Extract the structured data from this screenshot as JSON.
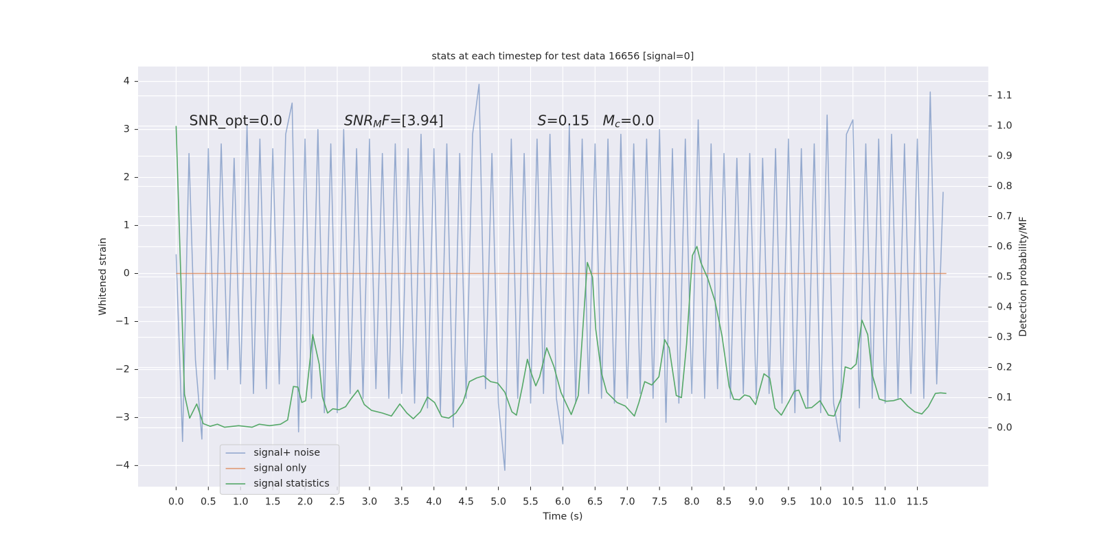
{
  "chart_data": {
    "type": "line",
    "title": "stats at each timestep for test data 16656 [signal=0]",
    "xlabel": "Time (s)",
    "ylabel": "Whitened strain",
    "y2label": "Detection probability/MF",
    "xlim": [
      -0.59,
      12.6
    ],
    "ylim": [
      -4.44,
      4.31
    ],
    "y2lim": [
      -0.195,
      1.197
    ],
    "xticks": [
      {
        "value": 0,
        "label": "0.0"
      },
      0.5,
      {
        "value": 1,
        "label": "1.0"
      },
      1.5,
      {
        "value": 2,
        "label": "2.0"
      },
      2.5,
      {
        "value": 3,
        "label": "3.0"
      },
      3.5,
      {
        "value": 4,
        "label": "4.0"
      },
      4.5,
      {
        "value": 5,
        "label": "5.0"
      },
      5.5,
      {
        "value": 6,
        "label": "6.0"
      },
      6.5,
      {
        "value": 7,
        "label": "7.0"
      },
      7.5,
      {
        "value": 8,
        "label": "8.0"
      },
      8.5,
      {
        "value": 9,
        "label": "9.0"
      },
      9.5,
      {
        "value": 10,
        "label": "10.0"
      },
      10.5,
      {
        "value": 11,
        "label": "11.0"
      },
      11.5
    ],
    "yticks": [
      {
        "value": -4,
        "label": "−4"
      },
      {
        "value": -3,
        "label": "−3"
      },
      {
        "value": -2,
        "label": "−2"
      },
      {
        "value": -1,
        "label": "−1"
      },
      0,
      1,
      2,
      3,
      4
    ],
    "y2ticks": [
      {
        "value": 0,
        "label": "0.0"
      },
      0.1,
      0.2,
      0.3,
      0.4,
      0.5,
      0.6,
      0.7,
      0.8,
      0.9,
      {
        "value": 1,
        "label": "1.0"
      },
      1.1
    ],
    "grid": true,
    "background": "#eaeaf2",
    "legend": "lower left",
    "annotations": [
      [
        {
          "text": "SNR_opt=0.0",
          "style": "normal"
        }
      ],
      [
        {
          "text": "SNR",
          "style": "italic"
        },
        {
          "text": "M",
          "style": "italic-sub"
        },
        {
          "text": "F",
          "style": "italic"
        },
        {
          "text": "=[3.94]",
          "style": "normal"
        }
      ],
      [
        {
          "text": "S",
          "style": "italic"
        },
        {
          "text": "=0.15   ",
          "style": "normal"
        },
        {
          "text": "M",
          "style": "italic"
        },
        {
          "text": "c",
          "style": "italic-sub"
        },
        {
          "text": "=0.0",
          "style": "normal"
        }
      ]
    ],
    "series": [
      {
        "name": "signal+ noise",
        "color": "#4c72b0",
        "alpha": 0.55,
        "axis": "y",
        "x": [
          0,
          0.1,
          0.2,
          0.3,
          0.4,
          0.5,
          0.6,
          0.7,
          0.8,
          0.9,
          1,
          1.1,
          1.2,
          1.3,
          1.4,
          1.5,
          1.6,
          1.7,
          1.8,
          1.9,
          2,
          2.1,
          2.2,
          2.3,
          2.4,
          2.5,
          2.6,
          2.7,
          2.8,
          2.9,
          3,
          3.1,
          3.2,
          3.3,
          3.4,
          3.5,
          3.6,
          3.7,
          3.8,
          3.9,
          4,
          4.1,
          4.2,
          4.3,
          4.4,
          4.5,
          4.6,
          4.7,
          4.8,
          4.9,
          5,
          5.1,
          5.2,
          5.3,
          5.4,
          5.5,
          5.6,
          5.7,
          5.8,
          5.9,
          6,
          6.1,
          6.2,
          6.3,
          6.4,
          6.5,
          6.6,
          6.7,
          6.8,
          6.9,
          7,
          7.1,
          7.2,
          7.3,
          7.4,
          7.5,
          7.6,
          7.7,
          7.8,
          7.9,
          8,
          8.1,
          8.2,
          8.3,
          8.4,
          8.5,
          8.6,
          8.7,
          8.8,
          8.9,
          9,
          9.1,
          9.2,
          9.3,
          9.4,
          9.5,
          9.6,
          9.7,
          9.8,
          9.9,
          10,
          10.1,
          10.2,
          10.3,
          10.4,
          10.5,
          10.6,
          10.7,
          10.8,
          10.9,
          11,
          11.1,
          11.2,
          11.3,
          11.4,
          11.5,
          11.6,
          11.7,
          11.8,
          11.9
        ],
        "values": [
          0.4,
          -3.5,
          2.5,
          -1.8,
          -3.45,
          2.6,
          -2.2,
          2.7,
          -2.0,
          2.4,
          -2.3,
          3.1,
          -2.5,
          2.8,
          -2.4,
          2.6,
          -2.3,
          2.9,
          3.55,
          -3.3,
          2.8,
          -2.6,
          3.0,
          -2.9,
          2.7,
          -2.9,
          3.0,
          -2.5,
          2.6,
          -2.6,
          2.8,
          -2.4,
          2.5,
          -2.6,
          2.7,
          -2.5,
          2.6,
          -2.7,
          2.9,
          -2.8,
          2.6,
          -2.9,
          2.7,
          -3.2,
          2.5,
          -2.6,
          2.9,
          3.94,
          -2.4,
          2.5,
          -2.7,
          -4.1,
          2.8,
          -2.6,
          2.5,
          -2.7,
          2.8,
          -2.5,
          2.9,
          -2.6,
          -3.55,
          3.1,
          -2.7,
          2.8,
          -2.5,
          2.7,
          -2.6,
          2.8,
          -2.7,
          2.9,
          -2.6,
          2.7,
          -2.5,
          2.8,
          -2.6,
          3.0,
          -3.1,
          2.6,
          -2.7,
          2.8,
          -2.5,
          3.2,
          -2.6,
          2.7,
          -2.4,
          2.5,
          -2.6,
          2.4,
          -2.5,
          2.5,
          -2.6,
          2.4,
          -2.5,
          2.6,
          -2.7,
          2.8,
          -2.9,
          2.6,
          -2.8,
          2.7,
          -2.9,
          3.3,
          -2.7,
          -3.5,
          2.9,
          3.2,
          -2.8,
          2.7,
          -2.6,
          2.8,
          -2.7,
          2.9,
          -2.6,
          2.7,
          -2.5,
          2.8,
          -2.6,
          3.78,
          -2.3,
          1.7
        ]
      },
      {
        "name": "signal only",
        "color": "#dd8452",
        "alpha": 0.8,
        "axis": "y",
        "x": [
          0,
          11.95
        ],
        "values": [
          0,
          0
        ]
      },
      {
        "name": "signal statistics",
        "color": "#55a868",
        "alpha": 1,
        "axis": "y2",
        "x": [
          0,
          0.13,
          0.21,
          0.32,
          0.42,
          0.53,
          0.64,
          0.75,
          0.97,
          1.18,
          1.29,
          1.45,
          1.62,
          1.73,
          1.82,
          1.89,
          1.95,
          2.01,
          2.12,
          2.22,
          2.27,
          2.35,
          2.43,
          2.53,
          2.63,
          2.71,
          2.82,
          2.92,
          3.03,
          3.2,
          3.34,
          3.47,
          3.58,
          3.68,
          3.79,
          3.9,
          4.01,
          4.12,
          4.23,
          4.34,
          4.45,
          4.55,
          4.66,
          4.77,
          4.88,
          4.99,
          5.1,
          5.21,
          5.28,
          5.37,
          5.45,
          5.51,
          5.58,
          5.64,
          5.75,
          5.86,
          5.97,
          6.13,
          6.24,
          6.38,
          6.46,
          6.51,
          6.6,
          6.68,
          6.84,
          6.97,
          7.11,
          7.18,
          7.27,
          7.38,
          7.49,
          7.58,
          7.65,
          7.76,
          7.84,
          7.92,
          8.01,
          8.08,
          8.14,
          8.25,
          8.36,
          8.47,
          8.58,
          8.65,
          8.74,
          8.82,
          8.9,
          8.99,
          9.12,
          9.21,
          9.29,
          9.39,
          9.5,
          9.59,
          9.66,
          9.77,
          9.86,
          9.99,
          10.12,
          10.21,
          10.32,
          10.38,
          10.47,
          10.55,
          10.64,
          10.73,
          10.8,
          10.91,
          11.02,
          11.13,
          11.24,
          11.35,
          11.46,
          11.57,
          11.67,
          11.78,
          11.86,
          11.95
        ],
        "values": [
          1.0,
          0.111,
          0.032,
          0.079,
          0.014,
          0.005,
          0.012,
          0.002,
          0.007,
          0.002,
          0.012,
          0.007,
          0.012,
          0.026,
          0.137,
          0.135,
          0.084,
          0.09,
          0.309,
          0.211,
          0.102,
          0.049,
          0.063,
          0.06,
          0.07,
          0.095,
          0.125,
          0.077,
          0.058,
          0.049,
          0.039,
          0.079,
          0.049,
          0.03,
          0.053,
          0.102,
          0.084,
          0.037,
          0.032,
          0.049,
          0.084,
          0.153,
          0.165,
          0.172,
          0.153,
          0.148,
          0.118,
          0.053,
          0.042,
          0.135,
          0.227,
          0.181,
          0.139,
          0.169,
          0.265,
          0.204,
          0.118,
          0.044,
          0.107,
          0.548,
          0.499,
          0.327,
          0.181,
          0.118,
          0.084,
          0.072,
          0.039,
          0.084,
          0.153,
          0.142,
          0.169,
          0.292,
          0.265,
          0.107,
          0.1,
          0.278,
          0.571,
          0.601,
          0.548,
          0.494,
          0.42,
          0.304,
          0.137,
          0.095,
          0.093,
          0.109,
          0.104,
          0.077,
          0.179,
          0.165,
          0.065,
          0.042,
          0.084,
          0.121,
          0.125,
          0.065,
          0.067,
          0.09,
          0.042,
          0.039,
          0.1,
          0.202,
          0.195,
          0.211,
          0.357,
          0.309,
          0.176,
          0.095,
          0.088,
          0.09,
          0.097,
          0.072,
          0.053,
          0.046,
          0.07,
          0.114,
          0.116,
          0.114
        ]
      }
    ]
  }
}
